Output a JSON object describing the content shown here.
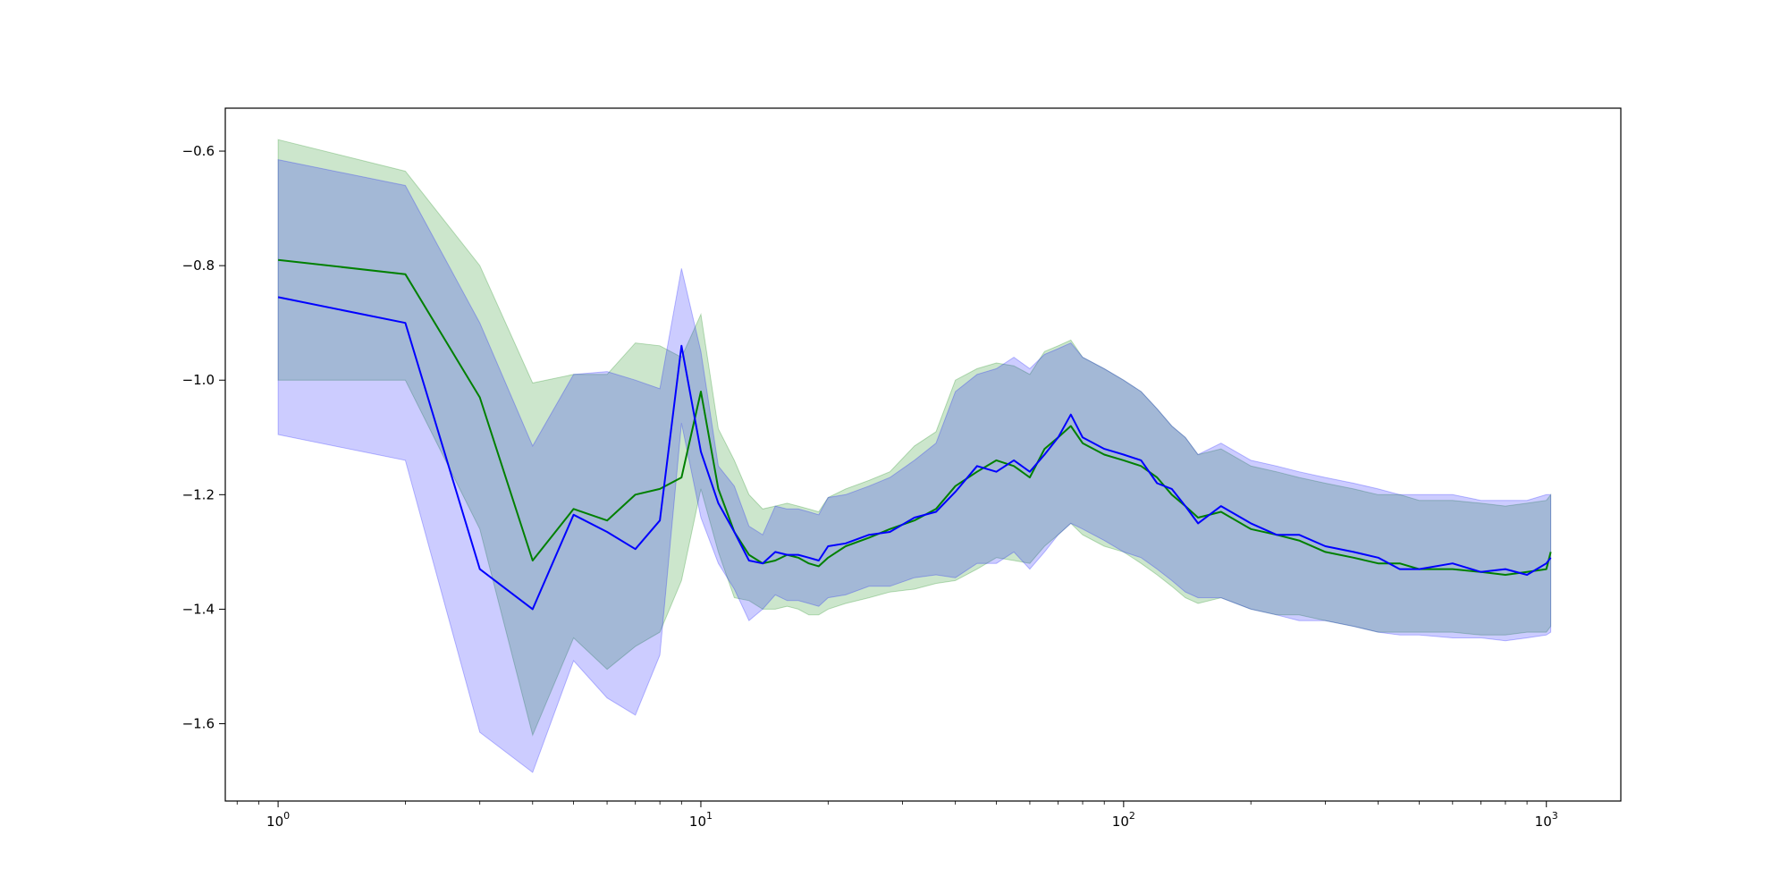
{
  "chart_data": {
    "type": "line",
    "x_scale": "log",
    "xlim": [
      0.75,
      1500
    ],
    "ylim": [
      -1.735,
      -0.525
    ],
    "grid": false,
    "legend": "none",
    "title": "",
    "xlabel": "",
    "ylabel": "",
    "x_ticks": [
      {
        "value": 1,
        "base": "10",
        "exp": "0"
      },
      {
        "value": 10,
        "base": "10",
        "exp": "1"
      },
      {
        "value": 100,
        "base": "10",
        "exp": "2"
      },
      {
        "value": 1000,
        "base": "10",
        "exp": "3"
      }
    ],
    "y_ticks": [
      {
        "value": -0.6,
        "label": "−0.6"
      },
      {
        "value": -0.8,
        "label": "−0.8"
      },
      {
        "value": -1.0,
        "label": "−1.0"
      },
      {
        "value": -1.2,
        "label": "−1.2"
      },
      {
        "value": -1.4,
        "label": "−1.4"
      },
      {
        "value": -1.6,
        "label": "−1.6"
      }
    ],
    "series": [
      {
        "color": "#008000",
        "band_color": "#008000",
        "x": [
          1,
          2,
          3,
          4,
          5,
          6,
          7,
          8,
          9,
          10,
          11,
          12,
          13,
          14,
          15,
          16,
          17,
          18,
          19,
          20,
          22,
          25,
          28,
          32,
          36,
          40,
          45,
          50,
          55,
          60,
          65,
          70,
          75,
          80,
          90,
          100,
          110,
          120,
          130,
          140,
          150,
          170,
          200,
          230,
          260,
          300,
          350,
          400,
          450,
          500,
          600,
          700,
          800,
          900,
          1000,
          1024
        ],
        "mean": [
          -0.79,
          -0.815,
          -1.03,
          -1.315,
          -1.225,
          -1.245,
          -1.2,
          -1.19,
          -1.17,
          -1.02,
          -1.19,
          -1.265,
          -1.305,
          -1.32,
          -1.315,
          -1.305,
          -1.31,
          -1.32,
          -1.325,
          -1.31,
          -1.29,
          -1.275,
          -1.26,
          -1.245,
          -1.225,
          -1.185,
          -1.16,
          -1.14,
          -1.15,
          -1.17,
          -1.12,
          -1.1,
          -1.08,
          -1.11,
          -1.13,
          -1.14,
          -1.15,
          -1.17,
          -1.2,
          -1.22,
          -1.24,
          -1.23,
          -1.26,
          -1.27,
          -1.28,
          -1.3,
          -1.31,
          -1.32,
          -1.32,
          -1.33,
          -1.33,
          -1.335,
          -1.34,
          -1.335,
          -1.33,
          -1.3
        ],
        "upper": [
          -0.58,
          -0.635,
          -0.8,
          -1.005,
          -0.99,
          -0.99,
          -0.935,
          -0.94,
          -0.96,
          -0.885,
          -1.085,
          -1.14,
          -1.2,
          -1.225,
          -1.22,
          -1.215,
          -1.22,
          -1.225,
          -1.23,
          -1.205,
          -1.19,
          -1.175,
          -1.16,
          -1.115,
          -1.09,
          -1.0,
          -0.98,
          -0.97,
          -0.975,
          -0.99,
          -0.95,
          -0.94,
          -0.93,
          -0.96,
          -0.98,
          -1.0,
          -1.02,
          -1.05,
          -1.08,
          -1.1,
          -1.13,
          -1.12,
          -1.15,
          -1.16,
          -1.17,
          -1.18,
          -1.19,
          -1.2,
          -1.2,
          -1.21,
          -1.21,
          -1.215,
          -1.22,
          -1.215,
          -1.21,
          -1.2
        ],
        "lower": [
          -1.0,
          -1.0,
          -1.26,
          -1.62,
          -1.45,
          -1.505,
          -1.465,
          -1.44,
          -1.35,
          -1.19,
          -1.3,
          -1.38,
          -1.385,
          -1.4,
          -1.4,
          -1.395,
          -1.4,
          -1.41,
          -1.41,
          -1.4,
          -1.39,
          -1.38,
          -1.37,
          -1.365,
          -1.355,
          -1.35,
          -1.33,
          -1.31,
          -1.315,
          -1.32,
          -1.29,
          -1.27,
          -1.25,
          -1.27,
          -1.29,
          -1.3,
          -1.32,
          -1.34,
          -1.36,
          -1.38,
          -1.39,
          -1.38,
          -1.4,
          -1.41,
          -1.41,
          -1.42,
          -1.43,
          -1.44,
          -1.44,
          -1.44,
          -1.44,
          -1.445,
          -1.445,
          -1.44,
          -1.44,
          -1.43
        ]
      },
      {
        "color": "#0000ff",
        "band_color": "#0000ff",
        "x": [
          1,
          2,
          3,
          4,
          5,
          6,
          7,
          8,
          9,
          10,
          11,
          12,
          13,
          14,
          15,
          16,
          17,
          18,
          19,
          20,
          22,
          25,
          28,
          32,
          36,
          40,
          45,
          50,
          55,
          60,
          65,
          70,
          75,
          80,
          90,
          100,
          110,
          120,
          130,
          140,
          150,
          170,
          200,
          230,
          260,
          300,
          350,
          400,
          450,
          500,
          600,
          700,
          800,
          900,
          1000,
          1024
        ],
        "mean": [
          -0.855,
          -0.9,
          -1.33,
          -1.4,
          -1.235,
          -1.265,
          -1.295,
          -1.245,
          -0.94,
          -1.125,
          -1.215,
          -1.265,
          -1.315,
          -1.32,
          -1.3,
          -1.305,
          -1.305,
          -1.31,
          -1.315,
          -1.29,
          -1.285,
          -1.27,
          -1.265,
          -1.24,
          -1.23,
          -1.195,
          -1.15,
          -1.16,
          -1.14,
          -1.16,
          -1.13,
          -1.1,
          -1.06,
          -1.1,
          -1.12,
          -1.13,
          -1.14,
          -1.18,
          -1.19,
          -1.22,
          -1.25,
          -1.22,
          -1.25,
          -1.27,
          -1.27,
          -1.29,
          -1.3,
          -1.31,
          -1.33,
          -1.33,
          -1.32,
          -1.335,
          -1.33,
          -1.34,
          -1.32,
          -1.31
        ],
        "upper": [
          -0.615,
          -0.66,
          -0.9,
          -1.115,
          -0.99,
          -0.985,
          -1.0,
          -1.015,
          -0.805,
          -0.95,
          -1.15,
          -1.185,
          -1.255,
          -1.27,
          -1.22,
          -1.225,
          -1.225,
          -1.23,
          -1.235,
          -1.205,
          -1.2,
          -1.185,
          -1.17,
          -1.14,
          -1.11,
          -1.02,
          -0.99,
          -0.98,
          -0.96,
          -0.98,
          -0.955,
          -0.945,
          -0.935,
          -0.96,
          -0.98,
          -1.0,
          -1.02,
          -1.05,
          -1.08,
          -1.1,
          -1.13,
          -1.11,
          -1.14,
          -1.15,
          -1.16,
          -1.17,
          -1.18,
          -1.19,
          -1.2,
          -1.2,
          -1.2,
          -1.21,
          -1.21,
          -1.21,
          -1.2,
          -1.2
        ],
        "lower": [
          -1.095,
          -1.14,
          -1.615,
          -1.685,
          -1.49,
          -1.555,
          -1.585,
          -1.48,
          -1.075,
          -1.24,
          -1.32,
          -1.365,
          -1.42,
          -1.4,
          -1.375,
          -1.385,
          -1.385,
          -1.39,
          -1.395,
          -1.38,
          -1.375,
          -1.36,
          -1.36,
          -1.345,
          -1.34,
          -1.345,
          -1.32,
          -1.32,
          -1.3,
          -1.33,
          -1.3,
          -1.27,
          -1.25,
          -1.26,
          -1.28,
          -1.3,
          -1.31,
          -1.33,
          -1.35,
          -1.37,
          -1.38,
          -1.38,
          -1.4,
          -1.41,
          -1.42,
          -1.42,
          -1.43,
          -1.44,
          -1.445,
          -1.445,
          -1.45,
          -1.45,
          -1.455,
          -1.45,
          -1.445,
          -1.44
        ]
      }
    ]
  }
}
